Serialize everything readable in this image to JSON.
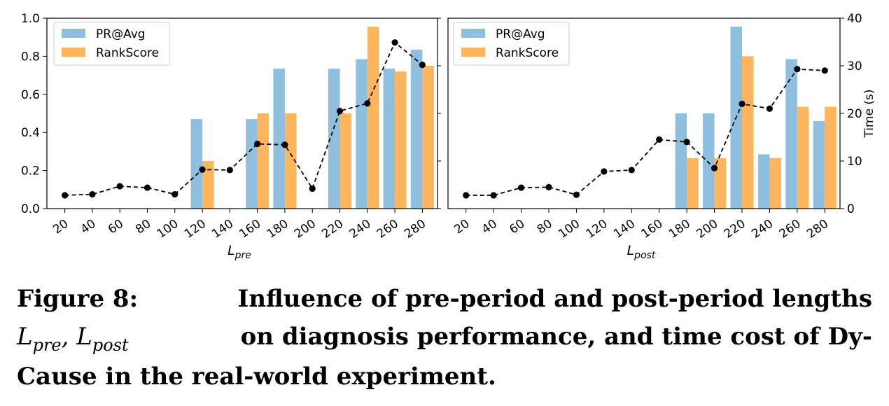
{
  "caption": {
    "label": "Figure 8:",
    "line1": "Influence of pre-period and post-period lengths",
    "math_pre_L": "L",
    "math_pre_sub": "pre",
    "math_sep": ",",
    "math_post_L": "L",
    "math_post_sub": "post",
    "line2_rest": "on diagnosis performance, and time cost of Dy-",
    "line3": "Cause in the real-world experiment."
  },
  "chart_data": [
    {
      "type": "bar",
      "xlabel_main": "L",
      "xlabel_sub": "pre",
      "categories": [
        "20",
        "40",
        "60",
        "80",
        "100",
        "120",
        "140",
        "160",
        "180",
        "200",
        "220",
        "240",
        "260",
        "280"
      ],
      "ylim": [
        0,
        1.0
      ],
      "yticks": [
        "0.0",
        "0.2",
        "0.4",
        "0.6",
        "0.8",
        "1.0"
      ],
      "legend": {
        "position": "top-left"
      },
      "series": [
        {
          "name": "PR@Avg",
          "type": "bar",
          "color": "#8fbfdf",
          "values": [
            0,
            0,
            0,
            0,
            0,
            0.47,
            0,
            0.47,
            0.735,
            0,
            0.735,
            0.785,
            0.735,
            0.835
          ]
        },
        {
          "name": "RankScore",
          "type": "bar",
          "color": "#ffb45e",
          "values": [
            0,
            0,
            0,
            0,
            0,
            0.25,
            0,
            0.5,
            0.5,
            0,
            0.5,
            0.955,
            0.72,
            0.75
          ]
        },
        {
          "type": "line",
          "axis": "time",
          "color": "#000000",
          "values": [
            2.8,
            3.0,
            4.7,
            4.4,
            3.0,
            8.2,
            8.1,
            13.6,
            13.4,
            4.2,
            20.5,
            22.1,
            34.9,
            30.2
          ]
        }
      ]
    },
    {
      "type": "bar",
      "xlabel_main": "L",
      "xlabel_sub": "post",
      "ylabel": "Time (s)",
      "categories": [
        "20",
        "40",
        "60",
        "80",
        "100",
        "120",
        "140",
        "160",
        "180",
        "200",
        "220",
        "240",
        "260",
        "280"
      ],
      "ylim": [
        0,
        40
      ],
      "yticks": [
        "0",
        "10",
        "20",
        "30",
        "40"
      ],
      "legend": {
        "position": "top-left"
      },
      "series": [
        {
          "name": "PR@Avg",
          "type": "bar",
          "color": "#8fbfdf",
          "values": [
            0,
            0,
            0,
            0,
            0,
            0,
            0,
            0,
            0.5,
            0.5,
            0.955,
            0.285,
            0.785,
            0.46
          ]
        },
        {
          "name": "RankScore",
          "type": "bar",
          "color": "#ffb45e",
          "values": [
            0,
            0,
            0,
            0,
            0,
            0,
            0,
            0,
            0.265,
            0.265,
            0.8,
            0.265,
            0.535,
            0.535
          ]
        },
        {
          "type": "line",
          "axis": "time",
          "color": "#000000",
          "values": [
            2.8,
            2.8,
            4.4,
            4.5,
            2.9,
            7.8,
            8.1,
            14.5,
            14.0,
            8.5,
            22.0,
            21.0,
            29.3,
            29.0
          ]
        }
      ]
    }
  ]
}
